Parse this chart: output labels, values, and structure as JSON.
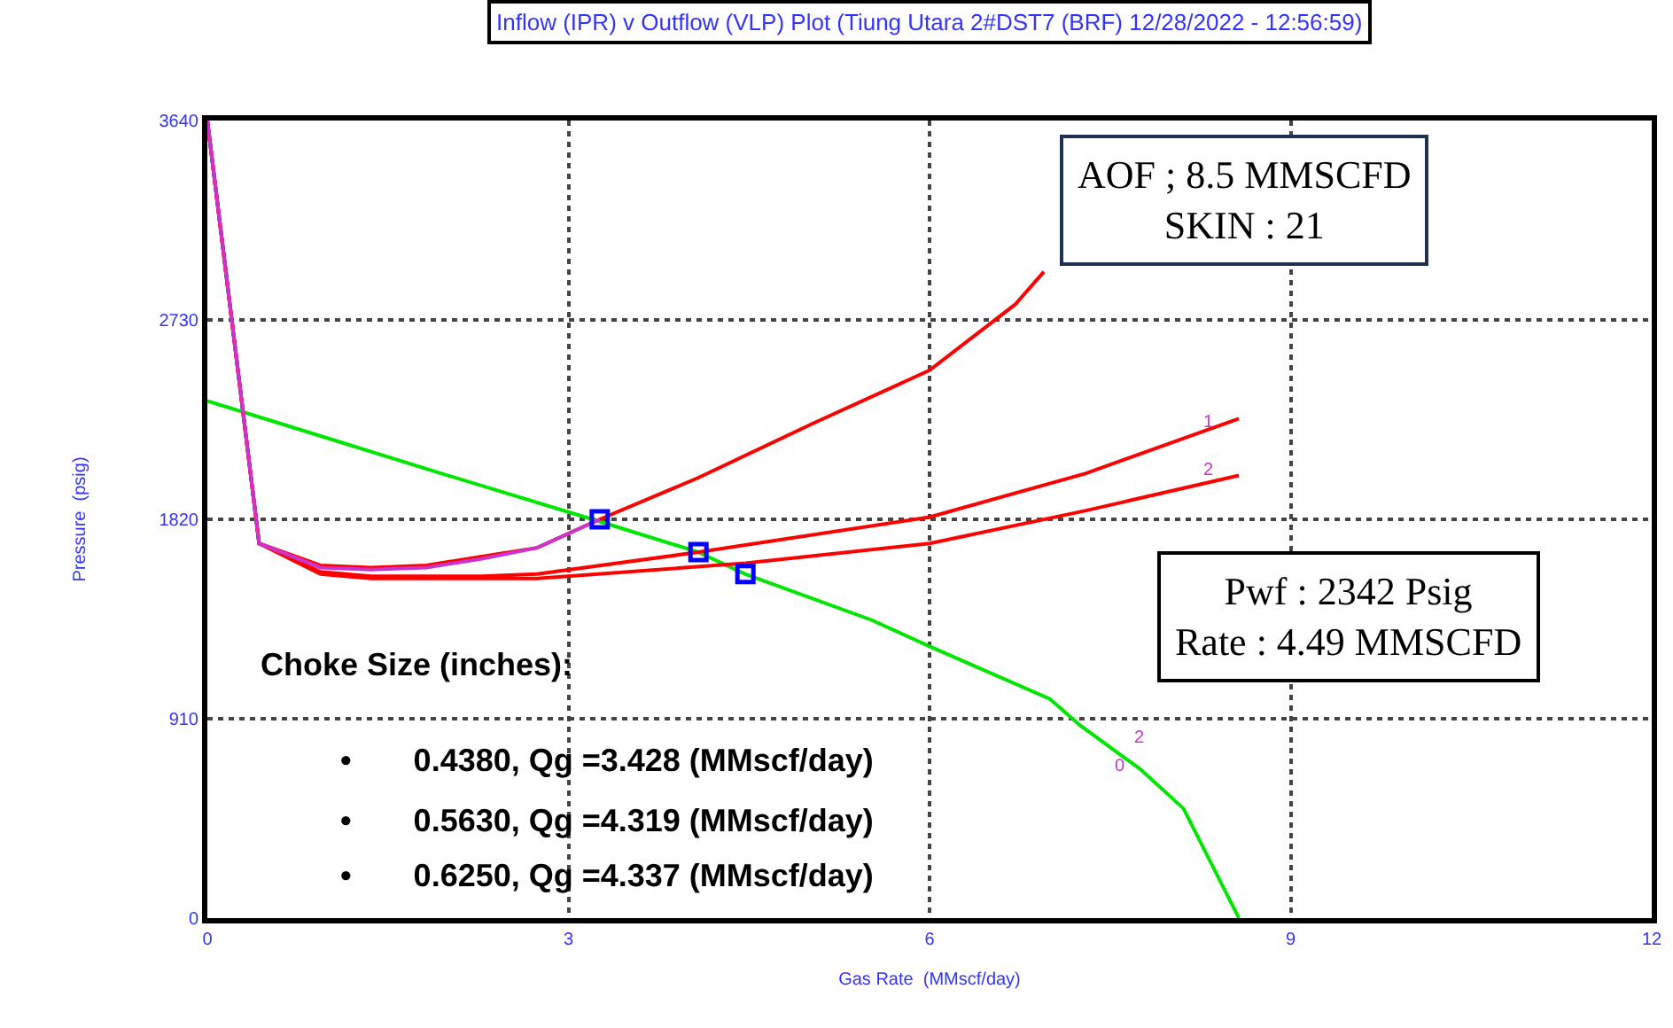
{
  "chart_data": {
    "type": "line",
    "title": "Inflow (IPR) v Outflow (VLP) Plot (Tiung Utara 2#DST7 (BRF) 12/28/2022 - 12:56:59)",
    "xlabel": "Gas Rate  (MMscf/day)",
    "ylabel": "Pressure  (psig)",
    "xlim": [
      0,
      12
    ],
    "xticks": [
      0,
      3,
      6,
      9,
      12
    ],
    "ylim": [
      0,
      3640
    ],
    "yticks": [
      0,
      910,
      1820,
      2730,
      3640
    ],
    "grid": true,
    "line_style": "solid",
    "marker": "none",
    "series": [
      {
        "color": "#00e600",
        "x": [
          0,
          1,
          2,
          3.26,
          4.08,
          4.47,
          5.52,
          6,
          7,
          7.25,
          7.75,
          8.11,
          8.57
        ],
        "values": [
          2360,
          2190,
          2020,
          1810,
          1670,
          1570,
          1360,
          1240,
          1000,
          880,
          680,
          500,
          0
        ]
      },
      {
        "color": "#ff0000",
        "x": [
          0,
          0.43,
          0.94,
          1.36,
          1.82,
          2.28,
          2.74,
          3.26,
          4.08,
          5.04,
          6,
          6.71,
          6.95
        ],
        "values": [
          3640,
          1710,
          1610,
          1600,
          1610,
          1650,
          1690,
          1820,
          2010,
          2260,
          2500,
          2800,
          2950
        ]
      },
      {
        "color": "#ff0000",
        "x": [
          0,
          0.43,
          0.94,
          1.36,
          1.82,
          2.28,
          2.74,
          4.08,
          6,
          7.3,
          8.57
        ],
        "values": [
          3640,
          1710,
          1580,
          1560,
          1560,
          1560,
          1570,
          1670,
          1830,
          2030,
          2280
        ]
      },
      {
        "color": "#ff0000",
        "x": [
          0,
          0.43,
          0.94,
          1.36,
          1.82,
          2.28,
          2.74,
          4.47,
          6,
          7.3,
          8.57
        ],
        "values": [
          3640,
          1710,
          1570,
          1550,
          1550,
          1550,
          1550,
          1620,
          1710,
          1860,
          2020
        ]
      },
      {
        "color": "#cc33cc",
        "x": [
          0,
          0.43,
          0.94,
          1.36,
          1.82,
          2.28,
          2.74,
          3.26
        ],
        "values": [
          3640,
          1710,
          1600,
          1590,
          1600,
          1640,
          1690,
          1820
        ]
      },
      {
        "type": "scatter",
        "color": "#0000ff",
        "marker": "square",
        "x": [
          3.26,
          4.08,
          4.47
        ],
        "values": [
          1820,
          1670,
          1570
        ]
      }
    ],
    "annotations": [
      "AOF ; 8.5 MMSCFD\nSKIN : 21",
      "Pwf : 2342 Psig\nRate : 4.49 MMSCFD",
      "Choke Size (inches):",
      "•       0.4380, Qg =3.428 (MMscf/day)",
      "•       0.5630, Qg =4.319 (MMscf/day)",
      "•       0.6250, Qg =4.337 (MMscf/day)",
      "1",
      "2",
      "2",
      "0"
    ]
  }
}
